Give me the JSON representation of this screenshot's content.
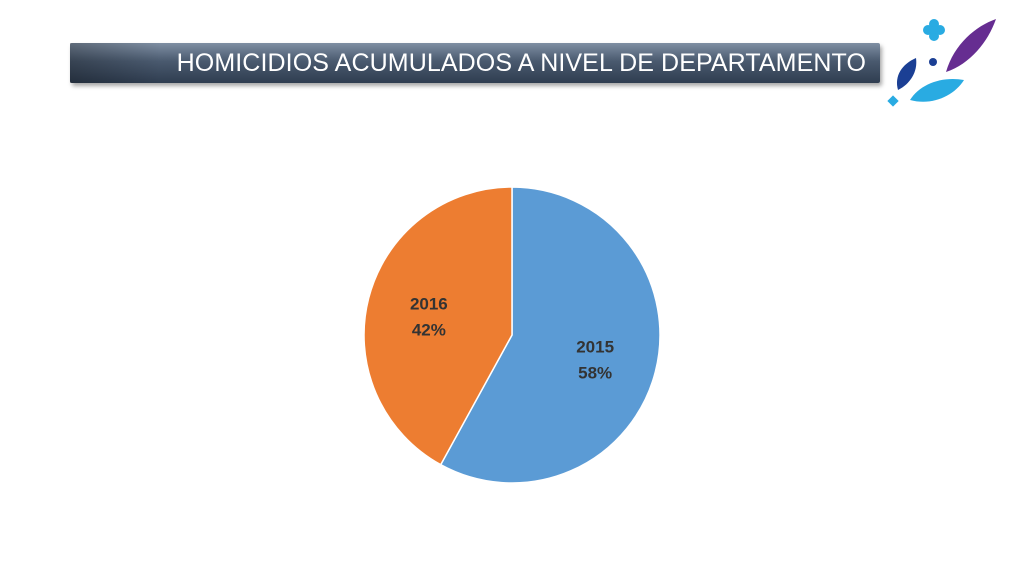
{
  "title": "HOMICIDIOS ACUMULADOS A NIVEL DE DEPARTAMENTO",
  "colors": {
    "slice_2015": "#5b9bd5",
    "slice_2016": "#ed7d31",
    "title_bar": "#3f4f63"
  },
  "logo": {
    "icon": "institution-logo-petals"
  },
  "chart_data": {
    "type": "pie",
    "title": "",
    "categories": [
      "2015",
      "2016"
    ],
    "values": [
      58,
      42
    ],
    "labels": [
      {
        "category": "2015",
        "percent": "58%"
      },
      {
        "category": "2016",
        "percent": "42%"
      }
    ],
    "start_angle": "12 o'clock",
    "direction": "clockwise",
    "legend": "none"
  }
}
